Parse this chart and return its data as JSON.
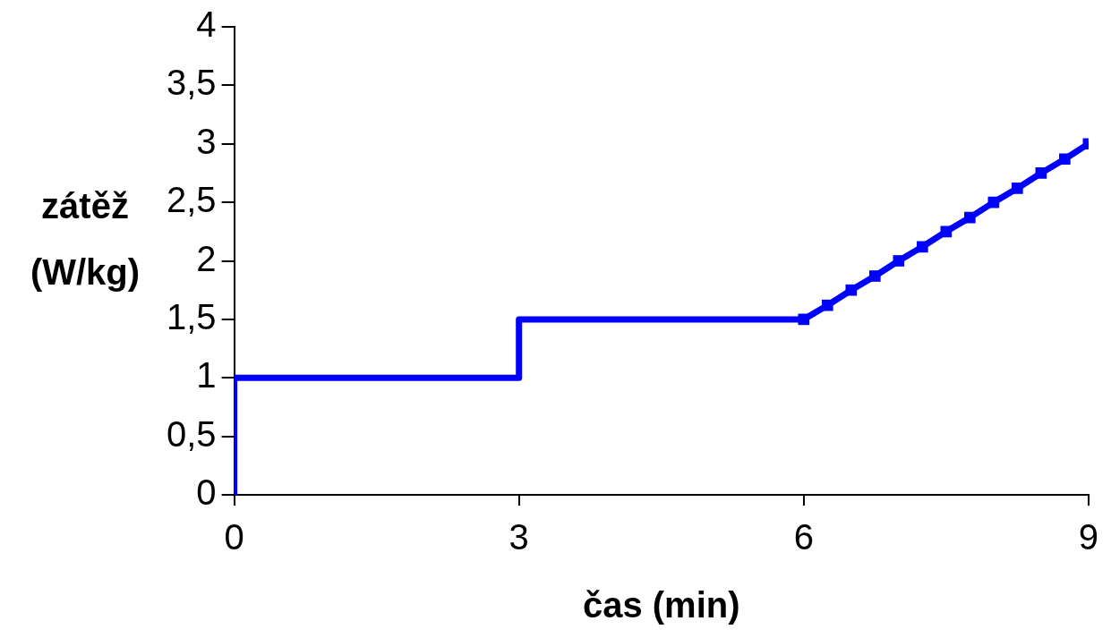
{
  "chart_data": {
    "type": "line",
    "xlabel": "čas (min)",
    "ylabel": "zátěž (W/kg)",
    "xlim": [
      0,
      9
    ],
    "xticks": [
      0,
      3,
      6,
      9
    ],
    "ylim": [
      0,
      4
    ],
    "yticks": [
      0,
      {
        "value": 0.5,
        "label": "0,5"
      },
      1,
      {
        "value": 1.5,
        "label": "1,5"
      },
      2,
      {
        "value": 2.5,
        "label": "2,5"
      },
      3,
      {
        "value": 3.5,
        "label": "3,5"
      },
      4
    ],
    "grid": false,
    "legend": false,
    "line_style": "solid",
    "series": [
      {
        "type": "line",
        "color": "#0000ff",
        "marker": "none",
        "x": [
          0,
          0,
          3,
          3,
          6
        ],
        "values": [
          0,
          1,
          1,
          1.5,
          1.5
        ]
      },
      {
        "type": "line",
        "color": "#0000ff",
        "marker": "square",
        "x": [
          6,
          6.25,
          6.5,
          6.75,
          7,
          7.25,
          7.5,
          7.75,
          8,
          8.25,
          8.5,
          8.75,
          9
        ],
        "values": [
          1.5,
          1.62,
          1.75,
          1.87,
          2,
          2.12,
          2.25,
          2.37,
          2.5,
          2.62,
          2.75,
          2.87,
          3
        ]
      }
    ]
  }
}
